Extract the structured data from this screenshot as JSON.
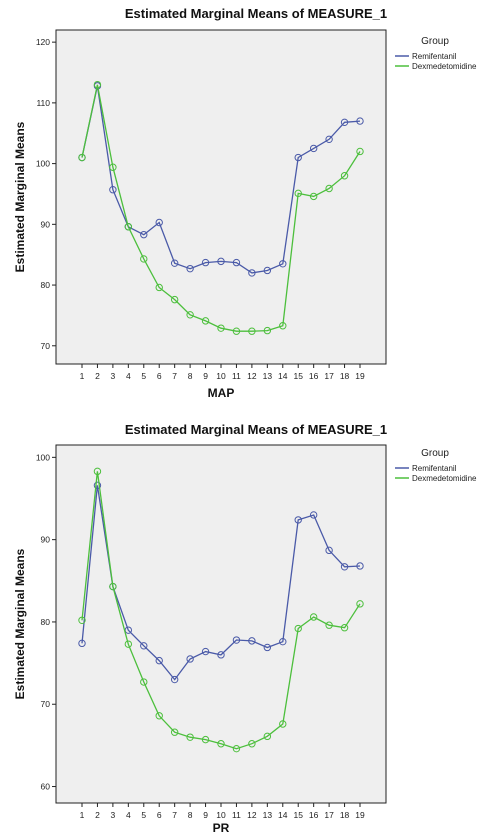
{
  "colors": {
    "remifentanil": "#4a5aa8",
    "dexmedetomidine": "#4cbf3c",
    "plot_bg": "#efefef"
  },
  "chart_data": [
    {
      "type": "line",
      "title": "Estimated Marginal Means of MEASURE_1",
      "xlabel": "MAP",
      "ylabel": "Estimated Marginal Means",
      "ylim": [
        67,
        122
      ],
      "yticks": [
        70,
        80,
        90,
        100,
        110,
        120
      ],
      "categories": [
        "1",
        "2",
        "3",
        "4",
        "5",
        "6",
        "7",
        "8",
        "9",
        "10",
        "11",
        "12",
        "13",
        "14",
        "15",
        "16",
        "17",
        "18",
        "19"
      ],
      "legend_title": "Group",
      "legend_position": "right",
      "grid": false,
      "series": [
        {
          "name": "Remifentanil",
          "values": [
            101.0,
            112.8,
            95.7,
            89.6,
            88.3,
            90.3,
            83.6,
            82.7,
            83.7,
            83.9,
            83.7,
            82.0,
            82.4,
            83.5,
            101.0,
            102.5,
            104.0,
            106.8,
            107.0
          ]
        },
        {
          "name": "Dexmedetomidine",
          "values": [
            101.0,
            113.0,
            99.4,
            89.6,
            84.3,
            79.6,
            77.6,
            75.1,
            74.1,
            72.9,
            72.4,
            72.4,
            72.5,
            73.3,
            95.1,
            94.6,
            95.9,
            98.0,
            102.0
          ]
        }
      ]
    },
    {
      "type": "line",
      "title": "Estimated Marginal Means of MEASURE_1",
      "xlabel": "PR",
      "ylabel": "Estimated Marginal Means",
      "ylim": [
        58,
        101.5
      ],
      "yticks": [
        60,
        70,
        80,
        90,
        100
      ],
      "categories": [
        "1",
        "2",
        "3",
        "4",
        "5",
        "6",
        "7",
        "8",
        "9",
        "10",
        "11",
        "12",
        "13",
        "14",
        "15",
        "16",
        "17",
        "18",
        "19"
      ],
      "legend_title": "Group",
      "legend_position": "right",
      "grid": false,
      "series": [
        {
          "name": "Remifentanil",
          "values": [
            77.4,
            96.6,
            84.3,
            79.0,
            77.1,
            75.3,
            73.0,
            75.5,
            76.4,
            76.0,
            77.8,
            77.7,
            76.9,
            77.6,
            92.4,
            93.0,
            88.7,
            86.7,
            86.8
          ]
        },
        {
          "name": "Dexmedetomidine",
          "values": [
            80.2,
            98.3,
            84.3,
            77.3,
            72.7,
            68.6,
            66.6,
            66.0,
            65.7,
            65.2,
            64.6,
            65.2,
            66.1,
            67.6,
            79.2,
            80.6,
            79.6,
            79.3,
            82.2
          ]
        }
      ]
    }
  ]
}
